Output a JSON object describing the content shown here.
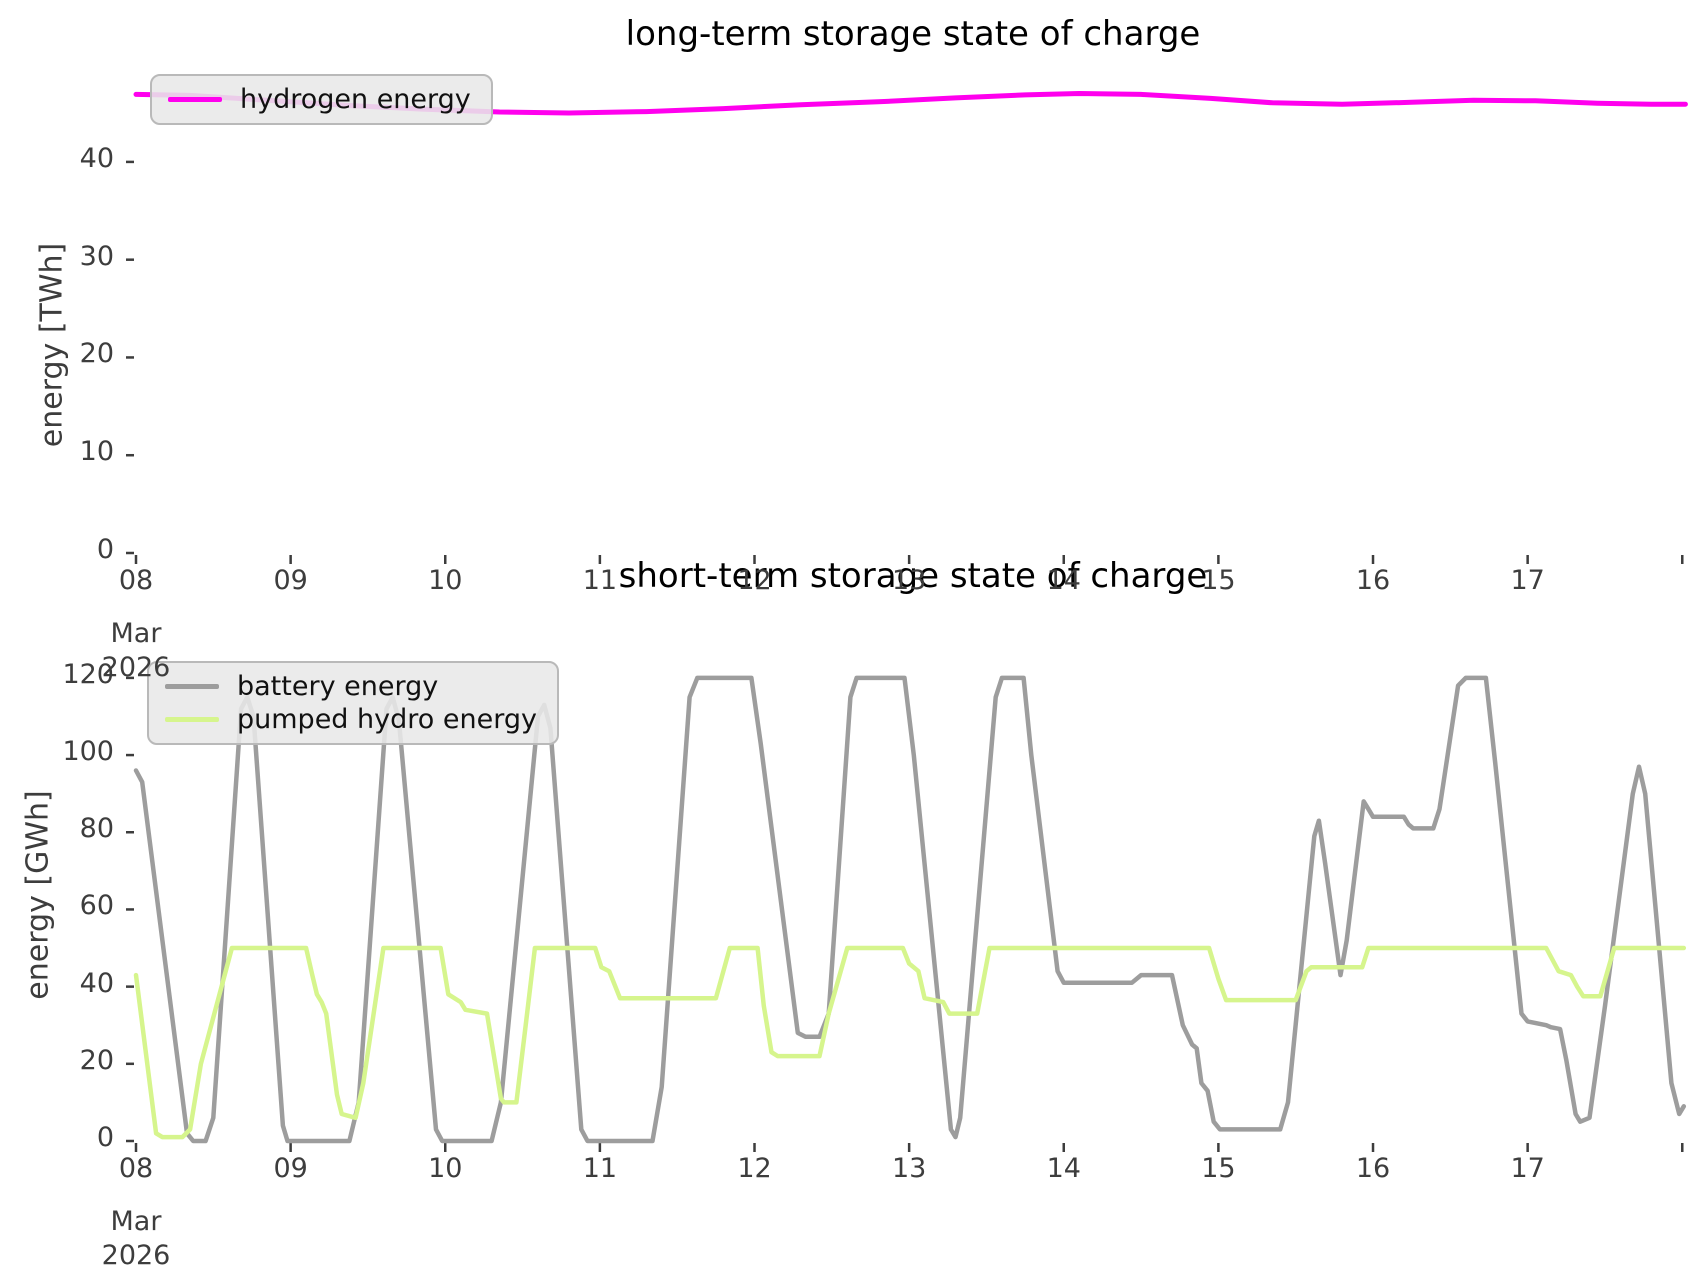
{
  "figure_background": "#ffffff",
  "tick_color": "#3d3d3d",
  "chart_data": [
    {
      "type": "line",
      "title": "long-term storage state of charge",
      "ylabel": "energy [TWh]",
      "xlabel": "",
      "grid": false,
      "legend_position": "upper left",
      "ylim": [
        0,
        49.4
      ],
      "xlim": [
        8,
        18.05
      ],
      "yticks": [
        0,
        10,
        20,
        30,
        40
      ],
      "xticks": [
        {
          "day": 8,
          "label": "08",
          "sublabels": [
            "Mar",
            "2026"
          ]
        },
        {
          "day": 9,
          "label": "09"
        },
        {
          "day": 10,
          "label": "10"
        },
        {
          "day": 11,
          "label": "11"
        },
        {
          "day": 12,
          "label": "12"
        },
        {
          "day": 13,
          "label": "13"
        },
        {
          "day": 14,
          "label": "14"
        },
        {
          "day": 15,
          "label": "15"
        },
        {
          "day": 16,
          "label": "16"
        },
        {
          "day": 17,
          "label": "17"
        },
        {
          "day": 18,
          "label": ""
        }
      ],
      "series": [
        {
          "name": "hydrogen energy",
          "color": "#ff00ee",
          "width": 5,
          "points": [
            [
              8.0,
              46.9
            ],
            [
              8.35,
              46.8
            ],
            [
              8.85,
              46.3
            ],
            [
              9.35,
              45.8
            ],
            [
              9.85,
              45.4
            ],
            [
              10.35,
              45.1
            ],
            [
              10.8,
              45.0
            ],
            [
              11.3,
              45.15
            ],
            [
              11.8,
              45.45
            ],
            [
              12.3,
              45.85
            ],
            [
              12.8,
              46.15
            ],
            [
              13.3,
              46.55
            ],
            [
              13.75,
              46.85
            ],
            [
              14.1,
              47.0
            ],
            [
              14.5,
              46.9
            ],
            [
              14.95,
              46.5
            ],
            [
              15.35,
              46.05
            ],
            [
              15.8,
              45.9
            ],
            [
              16.25,
              46.1
            ],
            [
              16.65,
              46.3
            ],
            [
              17.05,
              46.25
            ],
            [
              17.45,
              46.0
            ],
            [
              17.8,
              45.9
            ],
            [
              18.02,
              45.9
            ]
          ]
        }
      ]
    },
    {
      "type": "line",
      "title": "short-term storage state of charge",
      "ylabel": "energy [GWh]",
      "xlabel": "",
      "grid": false,
      "legend_position": "upper left",
      "ylim": [
        0,
        135
      ],
      "xlim": [
        8,
        18.05
      ],
      "yticks": [
        0,
        20,
        40,
        60,
        80,
        100,
        120
      ],
      "xticks": [
        {
          "day": 8,
          "label": "08",
          "sublabels": [
            "Mar",
            "2026"
          ]
        },
        {
          "day": 9,
          "label": "09"
        },
        {
          "day": 10,
          "label": "10"
        },
        {
          "day": 11,
          "label": "11"
        },
        {
          "day": 12,
          "label": "12"
        },
        {
          "day": 13,
          "label": "13"
        },
        {
          "day": 14,
          "label": "14"
        },
        {
          "day": 15,
          "label": "15"
        },
        {
          "day": 16,
          "label": "16"
        },
        {
          "day": 17,
          "label": "17"
        },
        {
          "day": 18,
          "label": ""
        }
      ],
      "series": [
        {
          "name": "battery energy",
          "color": "#9d9d9d",
          "width": 4.5,
          "points": [
            [
              8.0,
              96
            ],
            [
              8.04,
              93
            ],
            [
              8.33,
              2
            ],
            [
              8.37,
              0
            ],
            [
              8.45,
              0
            ],
            [
              8.5,
              6
            ],
            [
              8.68,
              112
            ],
            [
              8.72,
              115
            ],
            [
              8.76,
              110
            ],
            [
              8.95,
              4
            ],
            [
              8.98,
              0
            ],
            [
              9.38,
              0
            ],
            [
              9.44,
              10
            ],
            [
              9.62,
              112
            ],
            [
              9.66,
              115
            ],
            [
              9.7,
              109
            ],
            [
              9.94,
              3
            ],
            [
              9.98,
              0
            ],
            [
              10.3,
              0
            ],
            [
              10.36,
              10
            ],
            [
              10.6,
              110
            ],
            [
              10.64,
              113
            ],
            [
              10.68,
              107
            ],
            [
              10.88,
              3
            ],
            [
              10.92,
              0
            ],
            [
              11.34,
              0
            ],
            [
              11.4,
              14
            ],
            [
              11.58,
              115
            ],
            [
              11.63,
              120
            ],
            [
              11.98,
              120
            ],
            [
              12.04,
              103
            ],
            [
              12.28,
              28
            ],
            [
              12.33,
              27
            ],
            [
              12.42,
              27
            ],
            [
              12.48,
              33
            ],
            [
              12.62,
              115
            ],
            [
              12.66,
              120
            ],
            [
              12.97,
              120
            ],
            [
              13.03,
              100
            ],
            [
              13.27,
              3
            ],
            [
              13.3,
              1
            ],
            [
              13.33,
              6
            ],
            [
              13.56,
              115
            ],
            [
              13.6,
              120
            ],
            [
              13.74,
              120
            ],
            [
              13.79,
              100
            ],
            [
              13.96,
              44
            ],
            [
              14.0,
              41
            ],
            [
              14.44,
              41
            ],
            [
              14.5,
              43
            ],
            [
              14.7,
              43
            ],
            [
              14.77,
              30
            ],
            [
              14.83,
              25
            ],
            [
              14.86,
              24
            ],
            [
              14.89,
              15
            ],
            [
              14.93,
              13
            ],
            [
              14.97,
              5
            ],
            [
              15.01,
              3
            ],
            [
              15.4,
              3
            ],
            [
              15.45,
              10
            ],
            [
              15.62,
              79
            ],
            [
              15.65,
              83
            ],
            [
              15.69,
              72
            ],
            [
              15.79,
              43
            ],
            [
              15.83,
              52
            ],
            [
              15.94,
              88
            ],
            [
              15.97,
              86
            ],
            [
              16.0,
              84
            ],
            [
              16.2,
              84
            ],
            [
              16.23,
              82
            ],
            [
              16.26,
              81
            ],
            [
              16.39,
              81
            ],
            [
              16.43,
              86
            ],
            [
              16.55,
              118
            ],
            [
              16.6,
              120
            ],
            [
              16.73,
              120
            ],
            [
              16.79,
              98
            ],
            [
              16.96,
              33
            ],
            [
              17.0,
              31
            ],
            [
              17.12,
              30
            ],
            [
              17.15,
              29.5
            ],
            [
              17.21,
              29
            ],
            [
              17.25,
              21
            ],
            [
              17.31,
              7
            ],
            [
              17.34,
              5
            ],
            [
              17.4,
              6
            ],
            [
              17.5,
              35
            ],
            [
              17.68,
              90
            ],
            [
              17.72,
              97
            ],
            [
              17.76,
              90
            ],
            [
              17.93,
              15
            ],
            [
              17.98,
              7
            ],
            [
              18.01,
              9
            ]
          ]
        },
        {
          "name": "pumped hydro energy",
          "color": "#d6f58d",
          "width": 4.5,
          "points": [
            [
              8.0,
              43
            ],
            [
              8.13,
              2
            ],
            [
              8.17,
              1
            ],
            [
              8.3,
              1
            ],
            [
              8.35,
              3
            ],
            [
              8.42,
              20
            ],
            [
              8.62,
              50
            ],
            [
              9.1,
              50
            ],
            [
              9.14,
              43
            ],
            [
              9.17,
              38
            ],
            [
              9.2,
              36
            ],
            [
              9.23,
              33
            ],
            [
              9.3,
              12
            ],
            [
              9.33,
              7
            ],
            [
              9.42,
              6
            ],
            [
              9.47,
              15
            ],
            [
              9.6,
              50
            ],
            [
              9.97,
              50
            ],
            [
              10.02,
              38
            ],
            [
              10.1,
              36
            ],
            [
              10.13,
              34
            ],
            [
              10.27,
              33
            ],
            [
              10.36,
              11
            ],
            [
              10.38,
              10
            ],
            [
              10.46,
              10
            ],
            [
              10.52,
              30
            ],
            [
              10.58,
              50
            ],
            [
              10.97,
              50
            ],
            [
              11.01,
              45
            ],
            [
              11.06,
              44
            ],
            [
              11.13,
              37
            ],
            [
              11.75,
              37
            ],
            [
              11.84,
              50
            ],
            [
              12.02,
              50
            ],
            [
              12.06,
              35
            ],
            [
              12.11,
              23
            ],
            [
              12.15,
              22
            ],
            [
              12.42,
              22
            ],
            [
              12.48,
              33
            ],
            [
              12.6,
              50
            ],
            [
              12.96,
              50
            ],
            [
              13.0,
              46
            ],
            [
              13.06,
              44
            ],
            [
              13.1,
              37
            ],
            [
              13.22,
              36
            ],
            [
              13.26,
              33
            ],
            [
              13.44,
              33
            ],
            [
              13.52,
              50
            ],
            [
              14.94,
              50
            ],
            [
              15.0,
              42
            ],
            [
              15.05,
              36.5
            ],
            [
              15.5,
              36.5
            ],
            [
              15.57,
              44
            ],
            [
              15.6,
              45
            ],
            [
              15.93,
              45
            ],
            [
              15.97,
              50
            ],
            [
              17.12,
              50
            ],
            [
              17.2,
              44
            ],
            [
              17.28,
              43
            ],
            [
              17.32,
              40
            ],
            [
              17.36,
              37.5
            ],
            [
              17.47,
              37.5
            ],
            [
              17.56,
              50
            ],
            [
              18.01,
              50
            ]
          ]
        }
      ]
    }
  ]
}
